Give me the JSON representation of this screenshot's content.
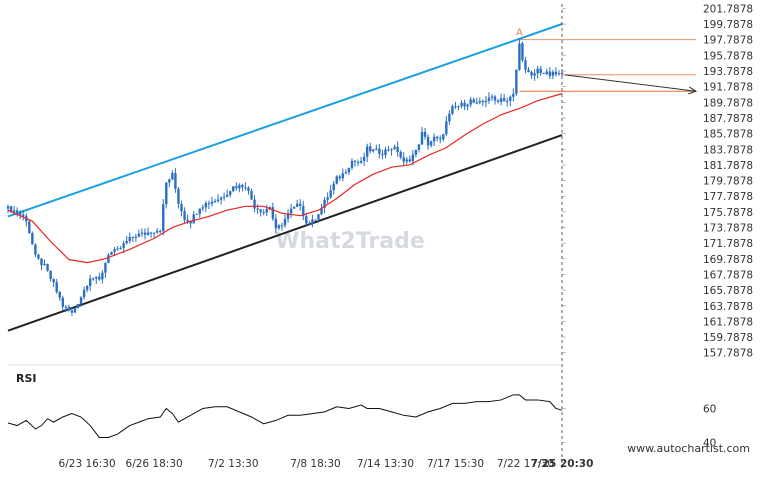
{
  "watermark": "What2Trade",
  "site": "www.autochartist.com",
  "marker_label": "A",
  "colors": {
    "candle": "#2a6fc4",
    "sma": "#e8261e",
    "upper_channel": "#1aa0e0",
    "lower_channel": "#222222",
    "projection": "#e8804a",
    "forecast": "#333333",
    "rsi": "#111111"
  },
  "chart_data": [
    {
      "type": "candlestick",
      "title": "",
      "yticks": [
        "201.7878",
        "199.7878",
        "197.7878",
        "195.7878",
        "193.7878",
        "191.7878",
        "189.7878",
        "187.7878",
        "185.7878",
        "183.7878",
        "181.7878",
        "179.7878",
        "177.7878",
        "175.7878",
        "173.7878",
        "171.7878",
        "169.7878",
        "167.7878",
        "165.7878",
        "163.7878",
        "161.7878",
        "159.7878",
        "157.7878"
      ],
      "ylim": [
        156.6,
        202.1
      ],
      "xticks": [
        "6/23 16:30",
        "6/26 18:30",
        "7/2 13:30",
        "7/8 18:30",
        "7/14 13:30",
        "7/17 15:30",
        "7/22 17:30",
        "7/25 20:30"
      ],
      "close_path": [
        [
          0,
          176.2
        ],
        [
          3,
          175.8
        ],
        [
          6,
          174.8
        ],
        [
          9,
          170.0
        ],
        [
          12,
          168.8
        ],
        [
          15,
          166.5
        ],
        [
          18,
          163.8
        ],
        [
          21,
          162.8
        ],
        [
          24,
          165.0
        ],
        [
          27,
          167.5
        ],
        [
          30,
          167.0
        ],
        [
          33,
          170.5
        ],
        [
          36,
          170.8
        ],
        [
          39,
          172.0
        ],
        [
          42,
          172.8
        ],
        [
          45,
          173.0
        ],
        [
          48,
          173.4
        ],
        [
          50,
          173.6
        ],
        [
          52,
          179.5
        ],
        [
          54,
          180.5
        ],
        [
          56,
          177.0
        ],
        [
          58,
          175.0
        ],
        [
          60,
          174.6
        ],
        [
          63,
          176.5
        ],
        [
          66,
          177.0
        ],
        [
          70,
          177.6
        ],
        [
          74,
          179.0
        ],
        [
          78,
          179.2
        ],
        [
          81,
          176.5
        ],
        [
          84,
          175.8
        ],
        [
          86,
          176.5
        ],
        [
          88,
          173.4
        ],
        [
          90,
          174.3
        ],
        [
          93,
          176.0
        ],
        [
          96,
          176.8
        ],
        [
          98,
          174.3
        ],
        [
          100,
          174.5
        ],
        [
          103,
          176.3
        ],
        [
          106,
          178.5
        ],
        [
          108,
          180.0
        ],
        [
          110,
          180.6
        ],
        [
          113,
          182.3
        ],
        [
          116,
          182.0
        ],
        [
          118,
          183.8
        ],
        [
          120,
          183.6
        ],
        [
          123,
          183.4
        ],
        [
          126,
          184.0
        ],
        [
          128,
          183.6
        ],
        [
          130,
          182.0
        ],
        [
          132,
          182.6
        ],
        [
          134,
          183.5
        ],
        [
          136,
          185.8
        ],
        [
          138,
          184.5
        ],
        [
          140,
          185.2
        ],
        [
          142,
          184.8
        ],
        [
          144,
          187.2
        ],
        [
          146,
          189.0
        ],
        [
          148,
          189.3
        ],
        [
          150,
          189.6
        ],
        [
          152,
          190.0
        ],
        [
          154,
          189.5
        ],
        [
          156,
          189.8
        ],
        [
          158,
          190.5
        ],
        [
          160,
          190.0
        ],
        [
          162,
          190.3
        ],
        [
          164,
          190.0
        ],
        [
          166,
          190.7
        ],
        [
          168,
          197.2
        ],
        [
          170,
          193.8
        ],
        [
          172,
          193.0
        ],
        [
          174,
          194.0
        ],
        [
          176,
          193.5
        ],
        [
          178,
          193.3
        ],
        [
          180,
          193.4
        ],
        [
          182,
          193.3
        ]
      ],
      "sma": [
        [
          0,
          176.0
        ],
        [
          8,
          174.6
        ],
        [
          14,
          172.0
        ],
        [
          20,
          169.7
        ],
        [
          26,
          169.3
        ],
        [
          32,
          169.8
        ],
        [
          40,
          171.0
        ],
        [
          48,
          172.4
        ],
        [
          54,
          173.8
        ],
        [
          60,
          174.6
        ],
        [
          66,
          175.2
        ],
        [
          72,
          176.0
        ],
        [
          78,
          176.5
        ],
        [
          84,
          176.5
        ],
        [
          90,
          175.6
        ],
        [
          96,
          175.3
        ],
        [
          102,
          176.0
        ],
        [
          108,
          177.5
        ],
        [
          114,
          179.3
        ],
        [
          120,
          180.6
        ],
        [
          126,
          181.5
        ],
        [
          132,
          181.8
        ],
        [
          138,
          183.0
        ],
        [
          144,
          184.0
        ],
        [
          150,
          185.6
        ],
        [
          156,
          187.0
        ],
        [
          162,
          188.2
        ],
        [
          168,
          189.0
        ],
        [
          174,
          190.0
        ],
        [
          182,
          190.9
        ]
      ],
      "upper_channel": [
        [
          0,
          175.2
        ],
        [
          182,
          199.8
        ]
      ],
      "lower_channel": [
        [
          0,
          160.6
        ],
        [
          182,
          185.6
        ]
      ],
      "resistance_level": 197.8,
      "support_level": 191.2,
      "projection_x_end": 226,
      "forecast_arrow": [
        [
          183,
          193.3
        ],
        [
          226,
          191.2
        ]
      ],
      "marker_a": [
        168,
        198.3
      ]
    },
    {
      "type": "line",
      "title": "RSI",
      "yticks": [
        "60",
        "40"
      ],
      "ylim": [
        38,
        72
      ],
      "values": [
        [
          0,
          51.5
        ],
        [
          3,
          50
        ],
        [
          6,
          53
        ],
        [
          9,
          48
        ],
        [
          11,
          50
        ],
        [
          13,
          54
        ],
        [
          15,
          52
        ],
        [
          18,
          55
        ],
        [
          21,
          57
        ],
        [
          24,
          55
        ],
        [
          27,
          50
        ],
        [
          30,
          43
        ],
        [
          33,
          43
        ],
        [
          36,
          45
        ],
        [
          40,
          50
        ],
        [
          43,
          52
        ],
        [
          46,
          54
        ],
        [
          50,
          55
        ],
        [
          52,
          60
        ],
        [
          54,
          57
        ],
        [
          56,
          52
        ],
        [
          60,
          56
        ],
        [
          64,
          60
        ],
        [
          68,
          61
        ],
        [
          72,
          61
        ],
        [
          76,
          58
        ],
        [
          80,
          55
        ],
        [
          84,
          51
        ],
        [
          88,
          53
        ],
        [
          92,
          56
        ],
        [
          96,
          56
        ],
        [
          100,
          57
        ],
        [
          104,
          58
        ],
        [
          108,
          61
        ],
        [
          112,
          60
        ],
        [
          116,
          62
        ],
        [
          118,
          60
        ],
        [
          122,
          60
        ],
        [
          126,
          58
        ],
        [
          130,
          56
        ],
        [
          134,
          55
        ],
        [
          138,
          58
        ],
        [
          142,
          60
        ],
        [
          146,
          63
        ],
        [
          150,
          63
        ],
        [
          154,
          64
        ],
        [
          158,
          64
        ],
        [
          162,
          65
        ],
        [
          166,
          68
        ],
        [
          168,
          68
        ],
        [
          170,
          65
        ],
        [
          174,
          65
        ],
        [
          178,
          64
        ],
        [
          180,
          60
        ],
        [
          182,
          59
        ]
      ]
    }
  ]
}
